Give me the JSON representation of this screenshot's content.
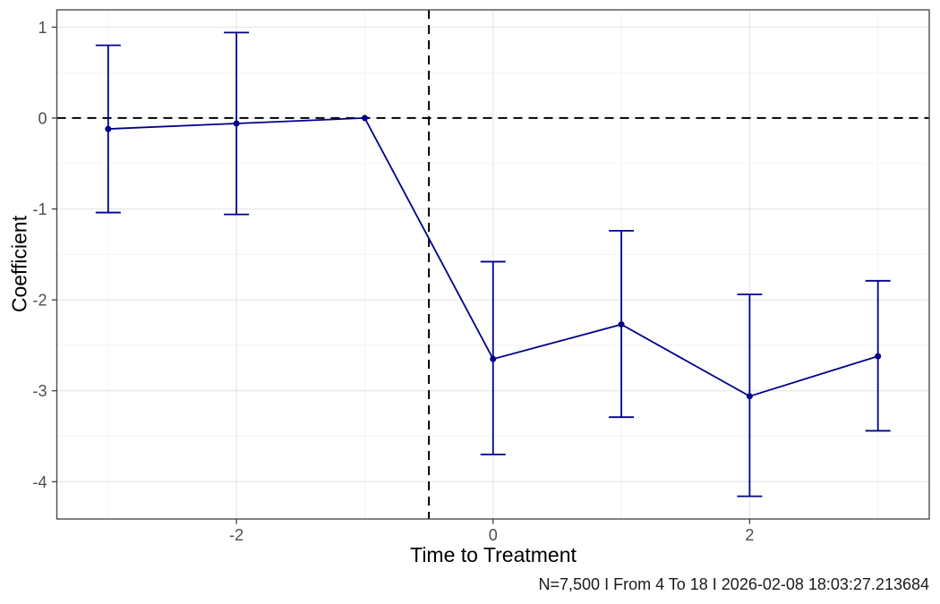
{
  "figure": {
    "caption": "N=7,500 I From 4 To 18 I 2026-02-08 18:03:27.213684",
    "background": "#FFFFFF"
  },
  "chart_data": {
    "type": "line",
    "subtype": "event-study-coefficient-plot-with-error-bars",
    "title": "",
    "xlabel": "Time to Treatment",
    "ylabel": "Coefficient",
    "x": [
      -3,
      -2,
      -1,
      0,
      1,
      2,
      3
    ],
    "series": [
      {
        "name": "coefficient",
        "values": [
          -0.12,
          -0.06,
          0,
          -2.65,
          -2.27,
          -3.06,
          -2.62
        ],
        "ci_low": [
          -1.04,
          -1.06,
          null,
          -3.7,
          -3.29,
          -4.16,
          -3.44
        ],
        "ci_high": [
          0.8,
          0.94,
          null,
          -1.58,
          -1.24,
          -1.94,
          -1.79
        ]
      }
    ],
    "reference_x": -1,
    "hline_y": 0,
    "vline_x": -0.5,
    "xticks": [
      -2,
      0,
      2
    ],
    "yticks": [
      1,
      0,
      -1,
      -2,
      -3,
      -4
    ],
    "xticks_minor": [
      -3,
      -1,
      1,
      3
    ],
    "yticks_minor": [
      0.5,
      -0.5,
      -1.5,
      -2.5,
      -3.5
    ],
    "xlim": [
      -3.4,
      3.4
    ],
    "ylim": [
      -4.41,
      1.19
    ],
    "grid": "major and minor, light gray, white panel",
    "legend": "none",
    "colors": {
      "series": "#00008B",
      "reference_line": "#000000",
      "grid_major": "#E7E7E7",
      "grid_minor": "#F2F2F2",
      "panel_border": "#4D4D4D",
      "panel_bg": "#FFFFFF",
      "tick": "#333333",
      "tick_label": "#4D4D4D",
      "axis_title": "#000000",
      "caption": "#1A1A1A"
    }
  }
}
